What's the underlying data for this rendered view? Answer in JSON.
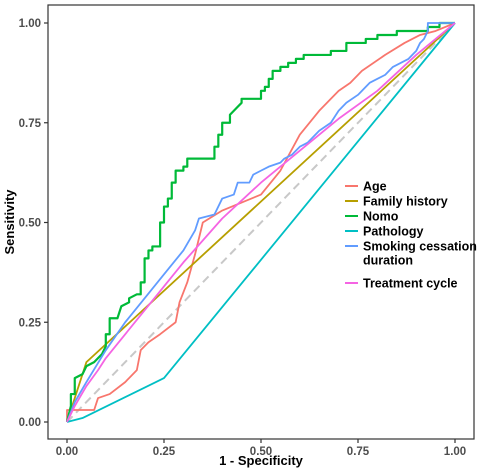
{
  "chart_data": {
    "type": "line",
    "xlabel": "1 - Specificity",
    "ylabel": "Sensitivity",
    "xlim": [
      0,
      1
    ],
    "ylim": [
      0,
      1
    ],
    "x_ticks": [
      "0.00",
      "0.25",
      "0.50",
      "0.75",
      "1.00"
    ],
    "y_ticks": [
      "0.00",
      "0.25",
      "0.50",
      "0.75",
      "1.00"
    ],
    "grid": false,
    "legend_position": "right-center",
    "reference_line": {
      "color": "#c8c8c8",
      "dashed": true,
      "points": [
        [
          0,
          0
        ],
        [
          1,
          1
        ]
      ]
    },
    "series": [
      {
        "name": "Age",
        "legend_lines": [
          "Age"
        ],
        "color": "#f8766d",
        "points": [
          [
            0,
            0
          ],
          [
            0,
            0.03
          ],
          [
            0.03,
            0.03
          ],
          [
            0.07,
            0.03
          ],
          [
            0.08,
            0.06
          ],
          [
            0.11,
            0.07
          ],
          [
            0.15,
            0.1
          ],
          [
            0.18,
            0.13
          ],
          [
            0.19,
            0.18
          ],
          [
            0.21,
            0.2
          ],
          [
            0.24,
            0.22
          ],
          [
            0.28,
            0.25
          ],
          [
            0.29,
            0.3
          ],
          [
            0.31,
            0.35
          ],
          [
            0.33,
            0.42
          ],
          [
            0.35,
            0.5
          ],
          [
            0.4,
            0.53
          ],
          [
            0.45,
            0.55
          ],
          [
            0.5,
            0.57
          ],
          [
            0.55,
            0.63
          ],
          [
            0.6,
            0.72
          ],
          [
            0.65,
            0.78
          ],
          [
            0.7,
            0.83
          ],
          [
            0.73,
            0.85
          ],
          [
            0.76,
            0.88
          ],
          [
            0.82,
            0.92
          ],
          [
            0.87,
            0.95
          ],
          [
            0.91,
            0.97
          ],
          [
            0.95,
            0.98
          ],
          [
            1,
            1
          ]
        ]
      },
      {
        "name": "Family history",
        "legend_lines": [
          "Family history"
        ],
        "color": "#b79f00",
        "points": [
          [
            0,
            0
          ],
          [
            0.05,
            0.15
          ],
          [
            1,
            1
          ]
        ]
      },
      {
        "name": "Nomo",
        "legend_lines": [
          "Nomo"
        ],
        "color": "#00ba38",
        "points": [
          [
            0,
            0
          ],
          [
            0.01,
            0.04
          ],
          [
            0.01,
            0.07
          ],
          [
            0.02,
            0.07
          ],
          [
            0.02,
            0.11
          ],
          [
            0.04,
            0.12
          ],
          [
            0.05,
            0.14
          ],
          [
            0.07,
            0.15
          ],
          [
            0.08,
            0.16
          ],
          [
            0.09,
            0.17
          ],
          [
            0.1,
            0.19
          ],
          [
            0.1,
            0.22
          ],
          [
            0.11,
            0.22
          ],
          [
            0.11,
            0.26
          ],
          [
            0.13,
            0.26
          ],
          [
            0.14,
            0.29
          ],
          [
            0.16,
            0.3
          ],
          [
            0.16,
            0.31
          ],
          [
            0.18,
            0.32
          ],
          [
            0.19,
            0.32
          ],
          [
            0.19,
            0.35
          ],
          [
            0.2,
            0.35
          ],
          [
            0.2,
            0.41
          ],
          [
            0.21,
            0.41
          ],
          [
            0.21,
            0.43
          ],
          [
            0.22,
            0.43
          ],
          [
            0.22,
            0.44
          ],
          [
            0.24,
            0.44
          ],
          [
            0.24,
            0.5
          ],
          [
            0.25,
            0.5
          ],
          [
            0.25,
            0.54
          ],
          [
            0.26,
            0.54
          ],
          [
            0.26,
            0.56
          ],
          [
            0.27,
            0.56
          ],
          [
            0.27,
            0.6
          ],
          [
            0.28,
            0.6
          ],
          [
            0.28,
            0.63
          ],
          [
            0.3,
            0.63
          ],
          [
            0.3,
            0.64
          ],
          [
            0.31,
            0.64
          ],
          [
            0.31,
            0.66
          ],
          [
            0.38,
            0.66
          ],
          [
            0.38,
            0.69
          ],
          [
            0.39,
            0.69
          ],
          [
            0.39,
            0.72
          ],
          [
            0.4,
            0.72
          ],
          [
            0.4,
            0.75
          ],
          [
            0.42,
            0.75
          ],
          [
            0.42,
            0.77
          ],
          [
            0.43,
            0.78
          ],
          [
            0.44,
            0.79
          ],
          [
            0.45,
            0.8
          ],
          [
            0.45,
            0.81
          ],
          [
            0.5,
            0.81
          ],
          [
            0.5,
            0.83
          ],
          [
            0.51,
            0.83
          ],
          [
            0.51,
            0.84
          ],
          [
            0.52,
            0.84
          ],
          [
            0.52,
            0.86
          ],
          [
            0.53,
            0.86
          ],
          [
            0.53,
            0.88
          ],
          [
            0.55,
            0.88
          ],
          [
            0.55,
            0.89
          ],
          [
            0.57,
            0.89
          ],
          [
            0.57,
            0.9
          ],
          [
            0.59,
            0.9
          ],
          [
            0.59,
            0.91
          ],
          [
            0.61,
            0.91
          ],
          [
            0.61,
            0.92
          ],
          [
            0.68,
            0.92
          ],
          [
            0.68,
            0.93
          ],
          [
            0.72,
            0.93
          ],
          [
            0.72,
            0.95
          ],
          [
            0.77,
            0.95
          ],
          [
            0.77,
            0.96
          ],
          [
            0.8,
            0.96
          ],
          [
            0.8,
            0.97
          ],
          [
            0.85,
            0.97
          ],
          [
            0.85,
            0.98
          ],
          [
            0.93,
            0.98
          ],
          [
            0.93,
            0.99
          ],
          [
            0.96,
            0.99
          ],
          [
            0.96,
            1
          ],
          [
            1,
            1
          ]
        ]
      },
      {
        "name": "Pathology",
        "legend_lines": [
          "Pathology"
        ],
        "color": "#00bfc4",
        "points": [
          [
            0,
            0
          ],
          [
            0.04,
            0.01
          ],
          [
            0.25,
            0.11
          ],
          [
            1,
            1
          ]
        ]
      },
      {
        "name": "Smoking cessation duration",
        "legend_lines": [
          "Smoking cessation",
          "duration"
        ],
        "color": "#619cff",
        "points": [
          [
            0,
            0
          ],
          [
            0.02,
            0.05
          ],
          [
            0.05,
            0.1
          ],
          [
            0.1,
            0.18
          ],
          [
            0.15,
            0.25
          ],
          [
            0.2,
            0.31
          ],
          [
            0.25,
            0.37
          ],
          [
            0.3,
            0.43
          ],
          [
            0.33,
            0.48
          ],
          [
            0.34,
            0.51
          ],
          [
            0.38,
            0.52
          ],
          [
            0.4,
            0.56
          ],
          [
            0.43,
            0.57
          ],
          [
            0.44,
            0.6
          ],
          [
            0.47,
            0.6
          ],
          [
            0.48,
            0.62
          ],
          [
            0.5,
            0.63
          ],
          [
            0.52,
            0.64
          ],
          [
            0.55,
            0.65
          ],
          [
            0.56,
            0.66
          ],
          [
            0.58,
            0.67
          ],
          [
            0.6,
            0.69
          ],
          [
            0.62,
            0.7
          ],
          [
            0.65,
            0.73
          ],
          [
            0.68,
            0.75
          ],
          [
            0.7,
            0.78
          ],
          [
            0.72,
            0.8
          ],
          [
            0.75,
            0.82
          ],
          [
            0.78,
            0.85
          ],
          [
            0.8,
            0.86
          ],
          [
            0.82,
            0.87
          ],
          [
            0.84,
            0.89
          ],
          [
            0.86,
            0.9
          ],
          [
            0.88,
            0.91
          ],
          [
            0.9,
            0.93
          ],
          [
            0.91,
            0.95
          ],
          [
            0.92,
            0.96
          ],
          [
            0.93,
            0.98
          ],
          [
            0.93,
            1
          ],
          [
            1,
            1
          ]
        ]
      },
      {
        "name": "Treatment cycle",
        "legend_lines": [
          "Treatment cycle"
        ],
        "color": "#f564e3",
        "points": [
          [
            0,
            0
          ],
          [
            0.02,
            0.04
          ],
          [
            0.05,
            0.09
          ],
          [
            0.08,
            0.13
          ],
          [
            0.1,
            0.16
          ],
          [
            0.2,
            0.28
          ],
          [
            0.3,
            0.4
          ],
          [
            0.4,
            0.51
          ],
          [
            0.5,
            0.6
          ],
          [
            0.6,
            0.68
          ],
          [
            0.7,
            0.76
          ],
          [
            0.8,
            0.83
          ],
          [
            0.9,
            0.92
          ],
          [
            1,
            1
          ]
        ]
      }
    ]
  }
}
